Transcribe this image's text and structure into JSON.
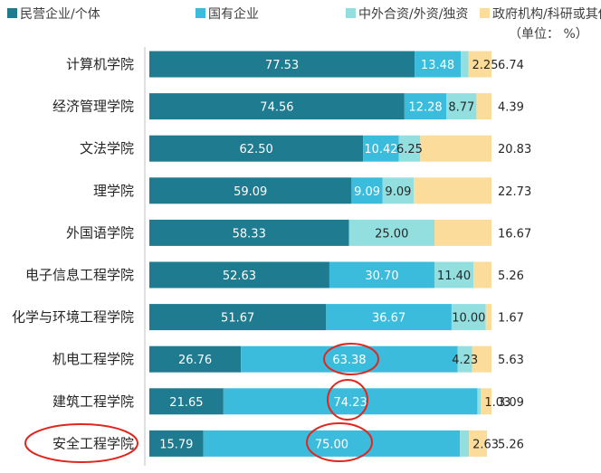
{
  "unit_note": "（单位：  %）",
  "chart_data": {
    "type": "bar",
    "orientation": "horizontal",
    "stacked": true,
    "percent_stacked": true,
    "categories": [
      "计算机学院",
      "经济管理学院",
      "文法学院",
      "理学院",
      "外国语学院",
      "电子信息工程学院",
      "化学与环境工程学院",
      "机电工程学院",
      "建筑工程学院",
      "安全工程学院"
    ],
    "series": [
      {
        "name": "民营企业/个体",
        "color": "#1f7b8f",
        "label_color": "#ffffff",
        "values": [
          77.53,
          74.56,
          62.5,
          59.09,
          58.33,
          52.63,
          51.67,
          26.76,
          21.65,
          15.79
        ]
      },
      {
        "name": "国有企业",
        "color": "#3bbcdc",
        "label_color": "#ffffff",
        "values": [
          13.48,
          12.28,
          10.42,
          9.09,
          0,
          30.7,
          36.67,
          63.38,
          74.23,
          75.0
        ]
      },
      {
        "name": "中外合资/外资/独资",
        "color": "#93dfe0",
        "label_color": "#262626",
        "values": [
          2.25,
          8.77,
          6.25,
          9.09,
          25.0,
          11.4,
          10.0,
          4.23,
          1.03,
          2.63
        ]
      },
      {
        "name": "政府机构/科研或其他事业单位",
        "color": "#fbdc9a",
        "label_color": "#262626",
        "values": [
          6.74,
          4.39,
          20.83,
          22.73,
          16.67,
          5.26,
          1.67,
          5.63,
          3.09,
          5.26
        ]
      }
    ],
    "value_labels": [
      [
        "77.53",
        "13.48",
        "2.25",
        "6.74"
      ],
      [
        "74.56",
        "12.28",
        "8.77",
        "4.39"
      ],
      [
        "62.50",
        "10.42",
        "6.25",
        "20.83"
      ],
      [
        "59.09",
        "9.09",
        "9.09",
        "22.73"
      ],
      [
        "58.33",
        "",
        "25.00",
        "16.67"
      ],
      [
        "52.63",
        "30.70",
        "11.40",
        "5.26"
      ],
      [
        "51.67",
        "36.67",
        "10.00",
        "1.67"
      ],
      [
        "26.76",
        "63.38",
        "4.23",
        "5.63"
      ],
      [
        "21.65",
        "74.23",
        "1.03",
        "3.09"
      ],
      [
        "15.79",
        "75.00",
        "2.63",
        "5.26"
      ]
    ],
    "xlim": [
      0,
      100
    ],
    "legend_position": "top",
    "annotations": [
      "red circles around 63.38, 74.23, 75.00 and the 安全工程学院 label"
    ]
  }
}
